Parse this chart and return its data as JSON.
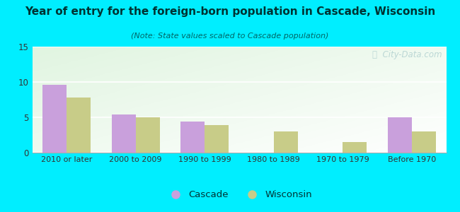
{
  "title": "Year of entry for the foreign-born population in Cascade, Wisconsin",
  "subtitle": "(Note: State values scaled to Cascade population)",
  "categories": [
    "2010 or later",
    "2000 to 2009",
    "1990 to 1999",
    "1980 to 1989",
    "1970 to 1979",
    "Before 1970"
  ],
  "cascade_values": [
    9.6,
    5.4,
    4.4,
    0,
    0,
    5.0
  ],
  "wisconsin_values": [
    7.8,
    5.0,
    3.9,
    3.0,
    1.5,
    3.0
  ],
  "cascade_color": "#c9a0dc",
  "wisconsin_color": "#c8cc88",
  "background_outer": "#00eeff",
  "ylim": [
    0,
    15
  ],
  "yticks": [
    0,
    5,
    10,
    15
  ],
  "bar_width": 0.35,
  "legend_labels": [
    "Cascade",
    "Wisconsin"
  ],
  "watermark": "ⓘ  City-Data.com",
  "title_color": "#003333",
  "subtitle_color": "#006666"
}
